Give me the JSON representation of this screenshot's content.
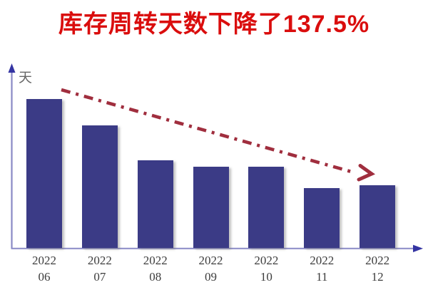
{
  "title": {
    "text": "库存周转天数下降了137.5%",
    "color": "#da0d0d"
  },
  "chart_data": {
    "type": "bar",
    "title": "库存周转天数下降了137.5%",
    "categories": [
      "2022 06",
      "2022 07",
      "2022 08",
      "2022 09",
      "2022 10",
      "2022 11",
      "2022 12"
    ],
    "values": [
      95,
      78,
      56,
      52,
      52,
      38,
      40
    ],
    "xlabel": "",
    "ylabel": "天",
    "ylim": [
      0,
      110
    ],
    "grid": "off",
    "legend": "none",
    "value_labels": "none",
    "bar_color": "#3b3b86",
    "axis_color": "#8a8ac6",
    "axis_arrow_color": "#3434a2",
    "trend_arrow": {
      "style": "dash-dot",
      "direction": "down-right",
      "color": "#a02e3e"
    }
  }
}
